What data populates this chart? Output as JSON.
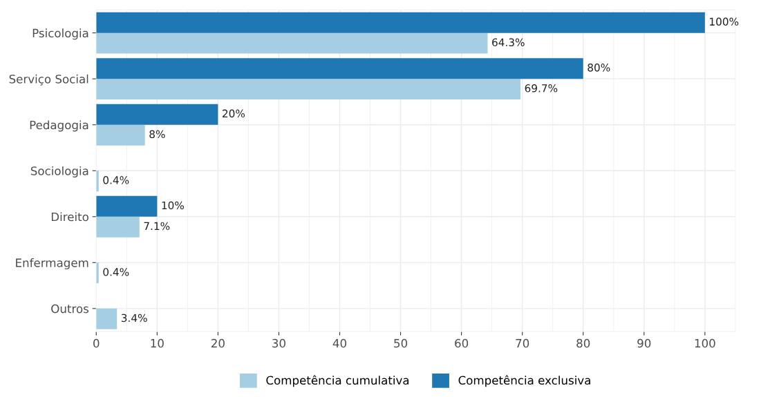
{
  "chart_data": {
    "type": "bar",
    "orientation": "horizontal",
    "categories": [
      "Psicologia",
      "Serviço Social",
      "Pedagogia",
      "Sociologia",
      "Direito",
      "Enfermagem",
      "Outros"
    ],
    "series": [
      {
        "name": "Competência cumulativa",
        "color": "#a6cee3",
        "values": [
          64.3,
          69.7,
          8,
          0.4,
          7.1,
          0.4,
          3.4
        ],
        "value_labels": [
          "64.3%",
          "69.7%",
          "8%",
          "0.4%",
          "7.1%",
          "0.4%",
          "3.4%"
        ]
      },
      {
        "name": "Competência exclusiva",
        "color": "#1f78b4",
        "values": [
          100,
          80,
          20,
          null,
          10,
          null,
          null
        ],
        "value_labels": [
          "100%",
          "80%",
          "20%",
          null,
          "10%",
          null,
          null
        ]
      }
    ],
    "xlim": [
      0,
      105
    ],
    "xticks": [
      0,
      10,
      20,
      30,
      40,
      50,
      60,
      70,
      80,
      90,
      100
    ],
    "grid": true,
    "legend": "bottom"
  }
}
